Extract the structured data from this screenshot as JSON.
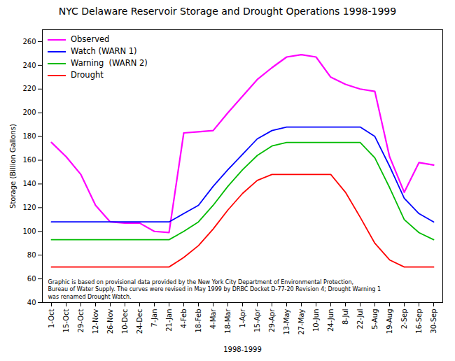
{
  "chart_data": {
    "type": "line",
    "title": "NYC Delaware Reservoir Storage and Drought Operations 1998-1999",
    "xlabel": "1998-1999",
    "ylabel": "Storage (Billion Gallons)",
    "categories": [
      "1-Oct",
      "15-Oct",
      "29-Oct",
      "12-Nov",
      "26-Nov",
      "10-Dec",
      "24-Dec",
      "7-Jan",
      "21-Jan",
      "4-Feb",
      "18-Feb",
      "4-Mar",
      "18-Mar",
      "1-Apr",
      "15-Apr",
      "29-Apr",
      "13-May",
      "27-May",
      "10-Jun",
      "24-Jun",
      "8-Jul",
      "22-Jul",
      "5-Aug",
      "19-Aug",
      "2-Sep",
      "16-Sep",
      "30-Sep"
    ],
    "series": [
      {
        "name": "Observed",
        "color": "#FF00FF",
        "values": [
          175,
          163,
          148,
          122,
          108,
          107,
          107,
          100,
          99,
          183,
          184,
          185,
          200,
          214,
          228,
          238,
          247,
          249,
          247,
          230,
          224,
          220,
          218,
          163,
          133,
          158,
          156
        ]
      },
      {
        "name": "Watch (WARN 1)",
        "color": "#0000FF",
        "values": [
          108,
          108,
          108,
          108,
          108,
          108,
          108,
          108,
          108,
          115,
          122,
          138,
          152,
          165,
          178,
          185,
          188,
          188,
          188,
          188,
          188,
          188,
          180,
          155,
          128,
          115,
          108
        ]
      },
      {
        "name": "Warning  (WARN 2)",
        "color": "#00BB00",
        "values": [
          93,
          93,
          93,
          93,
          93,
          93,
          93,
          93,
          93,
          100,
          108,
          122,
          138,
          152,
          164,
          172,
          175,
          175,
          175,
          175,
          175,
          175,
          162,
          137,
          110,
          99,
          93
        ]
      },
      {
        "name": "Drought",
        "color": "#FF0000",
        "values": [
          70,
          70,
          70,
          70,
          70,
          70,
          70,
          70,
          70,
          78,
          88,
          102,
          118,
          132,
          143,
          148,
          148,
          148,
          148,
          148,
          133,
          112,
          90,
          76,
          70,
          70,
          70
        ]
      }
    ],
    "annotations": [
      "Graphic is based on provisional data provided by the New York City Department of Environmental Protection,\nBureau of Water Supply. The curves were revised in May 1999 by DRBC Docket D-77-20 Revision 4; Drought Warning 1\nwas renamed Drought Watch."
    ],
    "ylim": [
      40,
      270
    ],
    "yticks": [
      40,
      60,
      80,
      100,
      120,
      140,
      160,
      180,
      200,
      220,
      240,
      260
    ],
    "grid": false,
    "legend": "upper left"
  }
}
